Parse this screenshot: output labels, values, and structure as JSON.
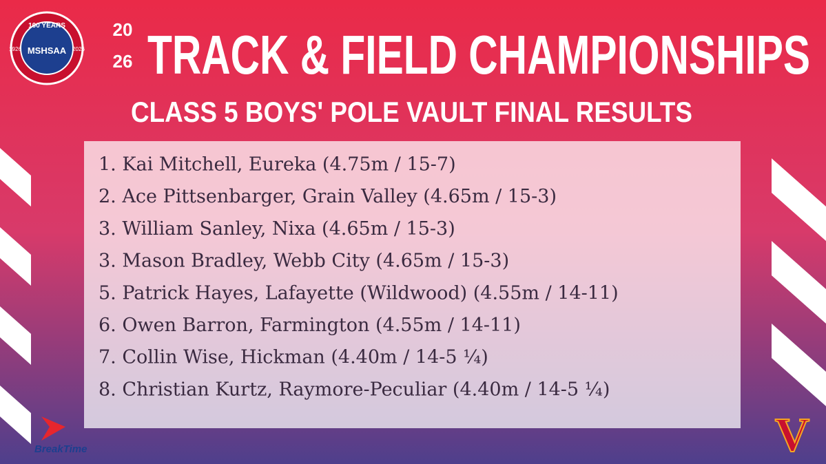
{
  "header": {
    "year_top": "20",
    "year_bottom": "26",
    "title": "TRACK & FIELD CHAMPIONSHIPS",
    "subtitle": "CLASS 5 BOYS' POLE VAULT FINAL RESULTS"
  },
  "logo": {
    "banner": "100 YEARS",
    "left_year": "1926",
    "right_year": "2026",
    "name": "MSHSAA"
  },
  "results": [
    "1. Kai Mitchell, Eureka (4.75m / 15-7)",
    "2. Ace Pittsenbarger, Grain Valley (4.65m / 15-3)",
    "3. William Sanley, Nixa (4.65m / 15-3)",
    "3. Mason Bradley, Webb City (4.65m / 15-3)",
    "5. Patrick Hayes, Lafayette (Wildwood) (4.55m / 14-11)",
    "6. Owen Barron, Farmington (4.55m / 14-11)",
    "7. Collin Wise, Hickman (4.40m / 14-5 ¼)",
    "8. Christian Kurtz, Raymore-Peculiar (4.40m / 14-5 ¼)"
  ],
  "sponsor": "BreakTime",
  "school_logo": "V"
}
